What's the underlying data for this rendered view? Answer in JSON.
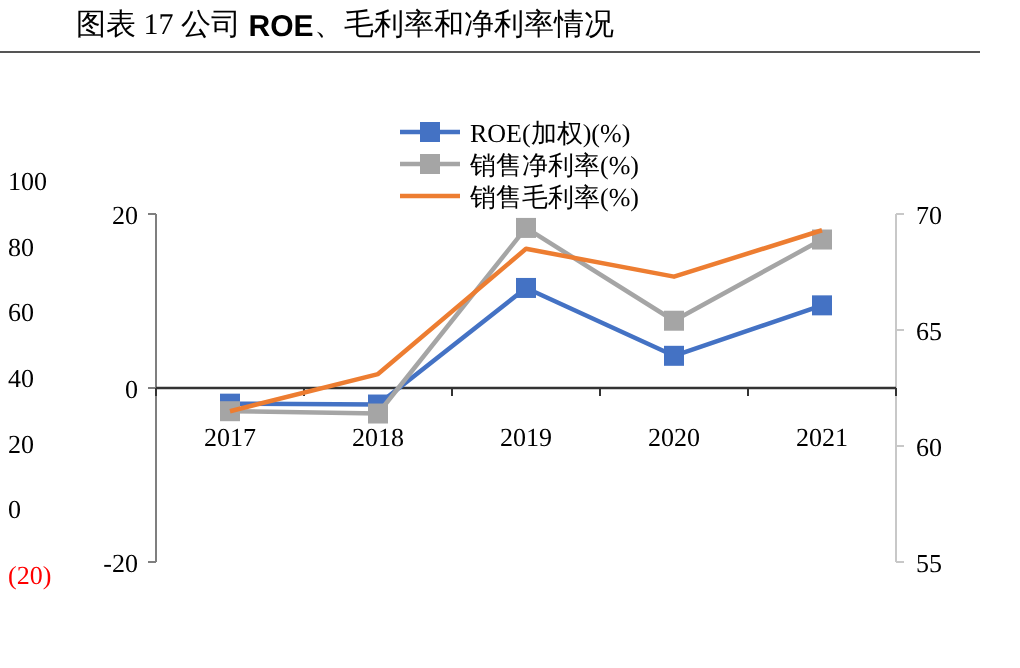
{
  "chart_data": {
    "type": "line",
    "title": "图表 17 公司 **ROE**、毛利率和净利率情况",
    "categories": [
      "2017",
      "2018",
      "2019",
      "2020",
      "2021"
    ],
    "series": [
      {
        "name": "ROE(加权)(%)",
        "color": "#4472c4",
        "marker": "square",
        "values": [
          -1.8,
          -1.9,
          11.5,
          3.7,
          9.5
        ]
      },
      {
        "name": "销售净利率(%)",
        "color": "#a5a5a5",
        "marker": "square",
        "axis": "y2",
        "values": [
          61.5,
          61.4,
          69.4,
          65.4,
          68.9
        ]
      },
      {
        "name": "销售毛利率(%)",
        "color": "#ed7d31",
        "marker": "none",
        "axis": "y2",
        "values": [
          61.5,
          63.1,
          68.5,
          67.3,
          69.3
        ]
      }
    ],
    "ylim": [
      -20,
      20
    ],
    "yticks": [
      -20,
      0,
      20
    ],
    "y2lim": [
      55,
      70
    ],
    "y2ticks": [
      55,
      60,
      65,
      70
    ],
    "y3lim": [
      -20,
      100
    ],
    "y3ticks": [
      {
        "value": -20,
        "label": "(20)"
      },
      0,
      20,
      40,
      60,
      80,
      100
    ],
    "legend": "top"
  }
}
